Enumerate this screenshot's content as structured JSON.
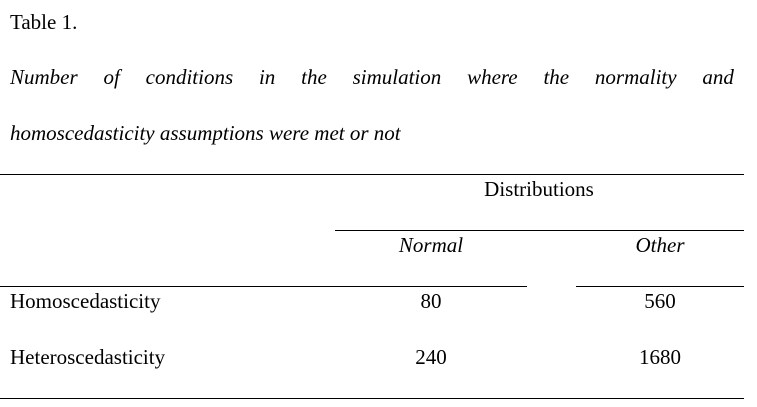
{
  "table": {
    "label": "Table 1.",
    "caption_words": [
      "Number",
      "of",
      "conditions",
      "in",
      "the",
      "simulation",
      "where",
      "the",
      "normality",
      "and"
    ],
    "caption_line2": "homoscedasticity assumptions were met or not",
    "spanner_header": "Distributions",
    "columns": [
      "Normal",
      "Other"
    ],
    "rows": [
      {
        "label": "Homoscedasticity",
        "values": [
          "80",
          "560"
        ]
      },
      {
        "label": "Heteroscedasticity",
        "values": [
          "240",
          "1680"
        ]
      }
    ]
  }
}
